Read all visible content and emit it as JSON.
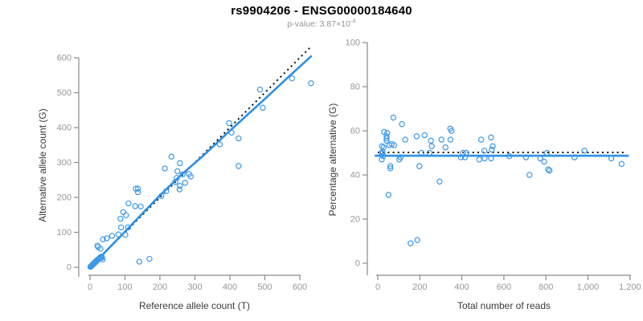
{
  "header": {
    "title": "rs9904206 - ENSG00000184640",
    "subtitle_main": "p-value: 3.87×10",
    "subtitle_exponent": "-4"
  },
  "colors": {
    "point": "#3e99e8",
    "fit_line": "#2b8fe8",
    "identity_line": "#000000",
    "axis": "#8a8a8a",
    "tick_text": "#979797",
    "axis_title": "#3a3a3a",
    "title": "#000000",
    "subtitle": "#959595",
    "background": "#ffffff"
  },
  "chart_data": [
    {
      "id": "allele-count-scatter",
      "type": "scatter",
      "xlabel": "Reference allele count (T)",
      "ylabel": "Alternative allele count (G)",
      "xlim": [
        0,
        630
      ],
      "ylim": [
        0,
        630
      ],
      "xticks": [
        0,
        100,
        200,
        300,
        400,
        500,
        600
      ],
      "xtick_labels": [
        "0",
        "100",
        "200",
        "300",
        "400",
        "500",
        "600"
      ],
      "yticks": [
        0,
        100,
        200,
        300,
        400,
        500,
        600
      ],
      "ytick_labels": [
        "0",
        "100",
        "200",
        "300",
        "400",
        "500",
        "600"
      ],
      "grid": false,
      "legend": null,
      "identity_line": {
        "style": "dotted",
        "x": [
          0,
          632
        ],
        "y": [
          0,
          632
        ]
      },
      "fit_line": {
        "style": "solid",
        "x": [
          0,
          100,
          200,
          260,
          320,
          400,
          500,
          560,
          632
        ],
        "y": [
          -1,
          102,
          206,
          264,
          316,
          391,
          482,
          538,
          604
        ]
      },
      "points": [
        [
          1,
          1
        ],
        [
          2,
          2
        ],
        [
          3,
          2
        ],
        [
          3,
          3
        ],
        [
          4,
          4
        ],
        [
          5,
          5
        ],
        [
          6,
          5
        ],
        [
          6,
          6
        ],
        [
          7,
          7
        ],
        [
          8,
          8
        ],
        [
          9,
          9
        ],
        [
          10,
          9
        ],
        [
          10,
          10
        ],
        [
          11,
          11
        ],
        [
          12,
          12
        ],
        [
          13,
          13
        ],
        [
          14,
          13
        ],
        [
          15,
          15
        ],
        [
          16,
          16
        ],
        [
          17,
          16
        ],
        [
          18,
          18
        ],
        [
          19,
          19
        ],
        [
          21,
          20
        ],
        [
          22,
          22
        ],
        [
          24,
          23
        ],
        [
          26,
          25
        ],
        [
          28,
          27
        ],
        [
          31,
          30
        ],
        [
          21,
          62
        ],
        [
          23,
          58
        ],
        [
          30,
          53
        ],
        [
          34,
          27
        ],
        [
          36,
          22
        ],
        [
          34,
          30
        ],
        [
          37,
          80
        ],
        [
          48,
          83
        ],
        [
          63,
          90
        ],
        [
          81,
          94
        ],
        [
          89,
          114
        ],
        [
          101,
          93
        ],
        [
          109,
          114
        ],
        [
          87,
          139
        ],
        [
          95,
          158
        ],
        [
          103,
          149
        ],
        [
          110,
          183
        ],
        [
          129,
          175
        ],
        [
          145,
          174
        ],
        [
          131,
          225
        ],
        [
          137,
          225
        ],
        [
          137,
          215
        ],
        [
          141,
          16
        ],
        [
          170,
          24
        ],
        [
          204,
          204
        ],
        [
          214,
          283
        ],
        [
          218,
          218
        ],
        [
          233,
          317
        ],
        [
          244,
          244
        ],
        [
          250,
          275
        ],
        [
          257,
          298
        ],
        [
          257,
          233
        ],
        [
          265,
          266
        ],
        [
          283,
          267
        ],
        [
          288,
          260
        ],
        [
          272,
          242
        ],
        [
          256,
          223
        ],
        [
          248,
          256
        ],
        [
          371,
          352
        ],
        [
          398,
          413
        ],
        [
          405,
          386
        ],
        [
          425,
          369
        ],
        [
          425,
          290
        ],
        [
          486,
          509
        ],
        [
          494,
          457
        ],
        [
          578,
          541
        ],
        [
          632,
          527
        ]
      ]
    },
    {
      "id": "percentage-alternative-scatter",
      "type": "scatter",
      "xlabel": "Total number of reads",
      "ylabel": "Percentage alternative (G)",
      "xlim": [
        0,
        1200
      ],
      "ylim": [
        0,
        100
      ],
      "xticks": [
        0,
        200,
        400,
        600,
        800,
        1000,
        1200
      ],
      "xtick_labels": [
        "0",
        "200",
        "400",
        "600",
        "800",
        "1,000",
        "1,200"
      ],
      "yticks": [
        0,
        20,
        40,
        60,
        80,
        100
      ],
      "ytick_labels": [
        "0",
        "20",
        "40",
        "60",
        "80",
        "100"
      ],
      "grid": false,
      "legend": null,
      "identity_line": {
        "style": "dotted",
        "x": [
          0,
          1185
        ],
        "y": [
          50.2,
          50.2
        ]
      },
      "fit_line": {
        "style": "solid",
        "x": [
          -10,
          1190
        ],
        "y": [
          48.7,
          48.7
        ]
      },
      "points": [
        [
          74,
          66
        ],
        [
          115,
          63
        ],
        [
          30,
          59.5
        ],
        [
          45,
          59
        ],
        [
          42,
          57.5
        ],
        [
          42,
          56.5
        ],
        [
          42,
          55.5
        ],
        [
          55,
          53.5
        ],
        [
          66,
          54
        ],
        [
          77,
          53.5
        ],
        [
          20,
          53
        ],
        [
          28,
          52.5
        ],
        [
          23,
          50.5
        ],
        [
          23,
          49.5
        ],
        [
          18,
          50
        ],
        [
          26,
          48.5
        ],
        [
          19,
          47
        ],
        [
          60,
          44
        ],
        [
          60,
          43
        ],
        [
          102,
          47
        ],
        [
          108,
          48
        ],
        [
          131,
          56
        ],
        [
          185,
          57.5
        ],
        [
          223,
          58
        ],
        [
          253,
          55.5
        ],
        [
          257,
          53
        ],
        [
          303,
          56
        ],
        [
          322,
          52.5
        ],
        [
          345,
          61
        ],
        [
          351,
          60
        ],
        [
          346,
          56
        ],
        [
          208,
          50
        ],
        [
          246,
          50
        ],
        [
          198,
          44
        ],
        [
          294,
          37
        ],
        [
          156,
          9
        ],
        [
          188,
          10.5
        ],
        [
          51,
          31
        ],
        [
          406,
          50
        ],
        [
          421,
          50
        ],
        [
          396,
          48
        ],
        [
          415,
          48
        ],
        [
          483,
          47
        ],
        [
          492,
          56
        ],
        [
          507,
          51
        ],
        [
          508,
          47.5
        ],
        [
          539,
          57
        ],
        [
          539,
          47.5
        ],
        [
          547,
          53
        ],
        [
          543,
          51.5
        ],
        [
          626,
          48.5
        ],
        [
          705,
          48
        ],
        [
          722,
          40
        ],
        [
          773,
          47.5
        ],
        [
          792,
          46
        ],
        [
          805,
          50
        ],
        [
          811,
          42.5
        ],
        [
          817,
          42
        ],
        [
          936,
          48
        ],
        [
          983,
          51
        ],
        [
          1111,
          47.5
        ],
        [
          1160,
          45
        ]
      ]
    }
  ]
}
